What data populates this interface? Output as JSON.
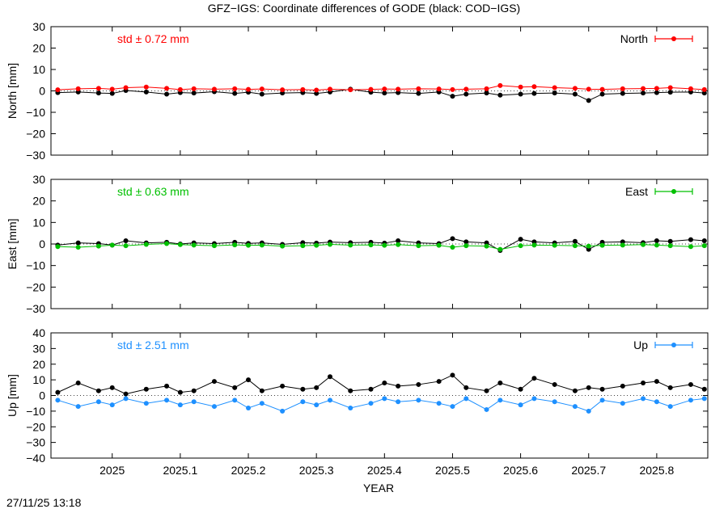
{
  "title": "GFZ−IGS: Coordinate differences of GODE (black: COD−IGS)",
  "timestamp": "27/11/25 13:18",
  "xlabel": "YEAR",
  "chart_data": [
    {
      "type": "line",
      "ylabel": "North [mm]",
      "ylim": [
        -30,
        30
      ],
      "yticks": [
        "30",
        "20",
        "10",
        "0",
        "−10",
        "−20",
        "−30"
      ],
      "std_label": "std ± 0.72 mm",
      "legend": "North",
      "legend_position": "top-right",
      "color": "#ff0000",
      "xlim": [
        2024.91,
        2025.875
      ],
      "xticks": [
        "2025",
        "2025.1",
        "2025.2",
        "2025.3",
        "2025.4",
        "2025.5",
        "2025.6",
        "2025.7",
        "2025.8"
      ],
      "series": [
        {
          "name": "North",
          "color": "#ff0000",
          "x": [
            2024.92,
            2024.95,
            2024.98,
            2025.0,
            2025.02,
            2025.05,
            2025.08,
            2025.1,
            2025.12,
            2025.15,
            2025.18,
            2025.2,
            2025.22,
            2025.25,
            2025.28,
            2025.3,
            2025.32,
            2025.35,
            2025.38,
            2025.4,
            2025.42,
            2025.45,
            2025.48,
            2025.5,
            2025.52,
            2025.55,
            2025.57,
            2025.6,
            2025.62,
            2025.65,
            2025.68,
            2025.7,
            2025.72,
            2025.75,
            2025.78,
            2025.8,
            2025.82,
            2025.85,
            2025.87
          ],
          "y": [
            0.5,
            1.0,
            1.2,
            0.8,
            1.5,
            1.8,
            1.2,
            0.6,
            1.0,
            0.8,
            1.0,
            0.7,
            0.9,
            0.5,
            0.6,
            0.4,
            0.8,
            0.5,
            0.7,
            0.9,
            0.8,
            1.0,
            0.9,
            0.6,
            0.8,
            1.0,
            2.5,
            1.8,
            2.0,
            1.5,
            1.2,
            0.8,
            0.7,
            1.0,
            1.1,
            1.2,
            1.5,
            1.0,
            0.6
          ]
        },
        {
          "name": "COD−IGS",
          "color": "#000000",
          "x": [
            2024.92,
            2024.95,
            2024.98,
            2025.0,
            2025.02,
            2025.05,
            2025.08,
            2025.1,
            2025.12,
            2025.15,
            2025.18,
            2025.2,
            2025.22,
            2025.25,
            2025.28,
            2025.3,
            2025.32,
            2025.35,
            2025.38,
            2025.4,
            2025.42,
            2025.45,
            2025.48,
            2025.5,
            2025.52,
            2025.55,
            2025.57,
            2025.6,
            2025.62,
            2025.65,
            2025.68,
            2025.7,
            2025.72,
            2025.75,
            2025.78,
            2025.8,
            2025.82,
            2025.85,
            2025.87
          ],
          "y": [
            -0.8,
            -0.5,
            -1.0,
            -1.2,
            0.2,
            -0.5,
            -1.5,
            -0.8,
            -1.0,
            -0.4,
            -1.2,
            -0.6,
            -1.5,
            -1.0,
            -0.8,
            -1.2,
            -0.5,
            0.8,
            -0.6,
            -1.0,
            -0.8,
            -1.2,
            -0.5,
            -2.5,
            -1.5,
            -1.0,
            -2.0,
            -1.5,
            -1.2,
            -1.0,
            -1.5,
            -4.5,
            -1.5,
            -1.2,
            -1.0,
            -0.8,
            -0.6,
            -0.5,
            -1.0
          ]
        }
      ]
    },
    {
      "type": "line",
      "ylabel": "East [mm]",
      "ylim": [
        -30,
        30
      ],
      "yticks": [
        "30",
        "20",
        "10",
        "0",
        "−10",
        "−20",
        "−30"
      ],
      "std_label": "std ± 0.63 mm",
      "legend": "East",
      "legend_position": "top-right",
      "color": "#00c000",
      "xlim": [
        2024.91,
        2025.875
      ],
      "series": [
        {
          "name": "East",
          "color": "#00c000",
          "x": [
            2024.92,
            2024.95,
            2024.98,
            2025.0,
            2025.02,
            2025.05,
            2025.08,
            2025.1,
            2025.12,
            2025.15,
            2025.18,
            2025.2,
            2025.22,
            2025.25,
            2025.28,
            2025.3,
            2025.32,
            2025.35,
            2025.38,
            2025.4,
            2025.42,
            2025.45,
            2025.48,
            2025.5,
            2025.52,
            2025.55,
            2025.57,
            2025.6,
            2025.62,
            2025.65,
            2025.68,
            2025.7,
            2025.72,
            2025.75,
            2025.78,
            2025.8,
            2025.82,
            2025.85,
            2025.87
          ],
          "y": [
            -1.2,
            -1.5,
            -1.0,
            -0.5,
            -0.8,
            -0.2,
            0.2,
            -0.3,
            -0.5,
            -0.8,
            -0.4,
            -0.6,
            -0.5,
            -1.0,
            -0.8,
            -0.6,
            -0.2,
            -0.5,
            -0.4,
            -0.6,
            -0.3,
            -0.8,
            -0.6,
            -1.5,
            -0.8,
            -1.0,
            -2.5,
            -0.8,
            -0.5,
            -0.6,
            -0.8,
            -1.0,
            -0.6,
            -0.5,
            -0.3,
            -0.5,
            -0.8,
            -1.2,
            -0.8
          ]
        },
        {
          "name": "COD−IGS",
          "color": "#000000",
          "x": [
            2024.92,
            2024.95,
            2024.98,
            2025.0,
            2025.02,
            2025.05,
            2025.08,
            2025.1,
            2025.12,
            2025.15,
            2025.18,
            2025.2,
            2025.22,
            2025.25,
            2025.28,
            2025.3,
            2025.32,
            2025.35,
            2025.38,
            2025.4,
            2025.42,
            2025.45,
            2025.48,
            2025.5,
            2025.52,
            2025.55,
            2025.57,
            2025.6,
            2025.62,
            2025.65,
            2025.68,
            2025.7,
            2025.72,
            2025.75,
            2025.78,
            2025.8,
            2025.82,
            2025.85,
            2025.87
          ],
          "y": [
            -0.5,
            0.5,
            0.2,
            -0.5,
            1.5,
            0.5,
            0.8,
            0.0,
            0.5,
            0.2,
            0.8,
            0.3,
            0.5,
            -0.2,
            0.6,
            0.4,
            0.9,
            0.6,
            0.8,
            0.4,
            1.5,
            0.5,
            0.2,
            2.5,
            1.0,
            0.5,
            -3.0,
            2.2,
            1.0,
            0.5,
            1.2,
            -2.5,
            0.8,
            1.0,
            0.6,
            1.5,
            1.2,
            2.0,
            1.5
          ]
        }
      ]
    },
    {
      "type": "line",
      "ylabel": "Up [mm]",
      "ylim": [
        -40,
        40
      ],
      "yticks": [
        "40",
        "30",
        "20",
        "10",
        "0",
        "−10",
        "−20",
        "−30",
        "−40"
      ],
      "std_label": "std ± 2.51 mm",
      "legend": "Up",
      "legend_position": "top-right",
      "color": "#1e90ff",
      "xlim": [
        2024.91,
        2025.875
      ],
      "series": [
        {
          "name": "Up",
          "color": "#1e90ff",
          "x": [
            2024.92,
            2024.95,
            2024.98,
            2025.0,
            2025.02,
            2025.05,
            2025.08,
            2025.1,
            2025.12,
            2025.15,
            2025.18,
            2025.2,
            2025.22,
            2025.25,
            2025.28,
            2025.3,
            2025.32,
            2025.35,
            2025.38,
            2025.4,
            2025.42,
            2025.45,
            2025.48,
            2025.5,
            2025.52,
            2025.55,
            2025.57,
            2025.6,
            2025.62,
            2025.65,
            2025.68,
            2025.7,
            2025.72,
            2025.75,
            2025.78,
            2025.8,
            2025.82,
            2025.85,
            2025.87
          ],
          "y": [
            -3,
            -7,
            -4,
            -6,
            -2,
            -5,
            -3,
            -6,
            -4,
            -7,
            -3,
            -8,
            -5,
            -10,
            -4,
            -6,
            -3,
            -8,
            -5,
            -2,
            -4,
            -3,
            -5,
            -7,
            -2,
            -9,
            -3,
            -6,
            -2,
            -4,
            -7,
            -10,
            -3,
            -5,
            -2,
            -4,
            -7,
            -3,
            -2
          ]
        },
        {
          "name": "COD−IGS",
          "color": "#000000",
          "x": [
            2024.92,
            2024.95,
            2024.98,
            2025.0,
            2025.02,
            2025.05,
            2025.08,
            2025.1,
            2025.12,
            2025.15,
            2025.18,
            2025.2,
            2025.22,
            2025.25,
            2025.28,
            2025.3,
            2025.32,
            2025.35,
            2025.38,
            2025.4,
            2025.42,
            2025.45,
            2025.48,
            2025.5,
            2025.52,
            2025.55,
            2025.57,
            2025.6,
            2025.62,
            2025.65,
            2025.68,
            2025.7,
            2025.72,
            2025.75,
            2025.78,
            2025.8,
            2025.82,
            2025.85,
            2025.87
          ],
          "y": [
            2,
            8,
            3,
            5,
            1,
            4,
            6,
            2,
            3,
            9,
            5,
            10,
            3,
            6,
            4,
            5,
            12,
            3,
            4,
            8,
            6,
            7,
            9,
            13,
            5,
            3,
            8,
            4,
            11,
            7,
            3,
            5,
            4,
            6,
            8,
            9,
            5,
            7,
            4
          ]
        }
      ]
    }
  ]
}
